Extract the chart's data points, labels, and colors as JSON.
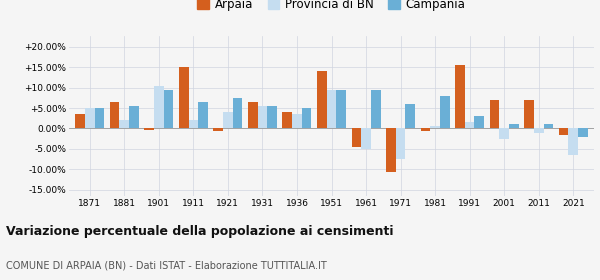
{
  "years": [
    1871,
    1881,
    1901,
    1911,
    1921,
    1931,
    1936,
    1951,
    1961,
    1971,
    1981,
    1991,
    2001,
    2011,
    2021
  ],
  "arpaia": [
    3.5,
    6.5,
    -0.3,
    15.0,
    -0.5,
    6.5,
    4.0,
    14.0,
    -4.5,
    -10.7,
    -0.5,
    15.5,
    7.0,
    7.0,
    -1.5
  ],
  "provincia_bn": [
    5.0,
    2.0,
    10.5,
    2.0,
    4.0,
    5.5,
    3.5,
    9.5,
    -5.0,
    -7.5,
    0.5,
    1.5,
    -2.5,
    -1.0,
    -6.5
  ],
  "campania": [
    5.0,
    5.5,
    9.5,
    6.5,
    7.5,
    5.5,
    5.0,
    9.5,
    9.5,
    6.0,
    8.0,
    3.0,
    1.0,
    1.0,
    -2.0
  ],
  "color_arpaia": "#d45f1e",
  "color_provincia": "#c5ddf0",
  "color_campania": "#6aafd6",
  "title": "Variazione percentuale della popolazione ai censimenti",
  "subtitle": "COMUNE DI ARPAIA (BN) - Dati ISTAT - Elaborazione TUTTITALIA.IT",
  "legend_labels": [
    "Arpaia",
    "Provincia di BN",
    "Campania"
  ],
  "ylim": [
    -16.5,
    22.5
  ],
  "yticks": [
    -15.0,
    -10.0,
    -5.0,
    0.0,
    5.0,
    10.0,
    15.0,
    20.0
  ],
  "ytick_labels": [
    "-15.00%",
    "-10.00%",
    "-5.00%",
    "0.00%",
    "+5.00%",
    "+10.00%",
    "+15.00%",
    "+20.00%"
  ],
  "background_color": "#f5f5f5",
  "grid_color": "#d0d4e0"
}
